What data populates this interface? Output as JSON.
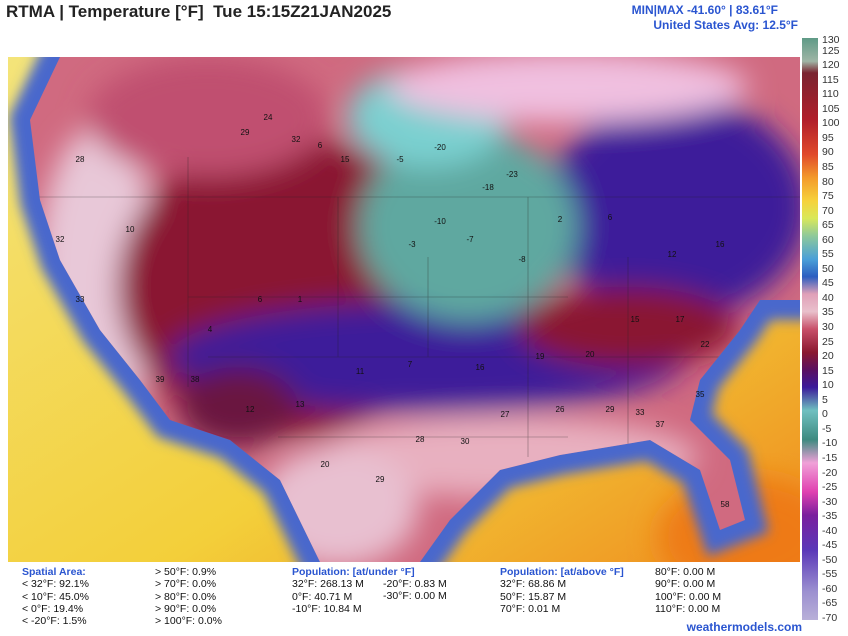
{
  "header": {
    "title": "RTMA | Temperature [°F]  Tue 15:15Z21JAN2025",
    "minmax": "MIN|MAX -41.60° | 83.61°F",
    "average": "United States Avg: 12.5°F"
  },
  "colorbar": {
    "ticks": [
      130,
      125,
      120,
      115,
      110,
      105,
      100,
      95,
      90,
      85,
      80,
      75,
      70,
      65,
      60,
      55,
      50,
      45,
      40,
      35,
      30,
      25,
      20,
      15,
      10,
      5,
      0,
      -5,
      -10,
      -15,
      -20,
      -25,
      -30,
      -35,
      -40,
      -45,
      -50,
      -55,
      -60,
      -65,
      -70
    ]
  },
  "stations": [
    "29",
    "24",
    "32",
    "6",
    "15",
    "-5",
    "-20",
    "-18",
    "-23",
    "-10",
    "-7",
    "-8",
    "-3",
    "2",
    "6",
    "12",
    "16",
    "15",
    "17",
    "22",
    "20",
    "19",
    "16",
    "7",
    "11",
    "13",
    "12",
    "38",
    "39",
    "33",
    "32",
    "28",
    "10",
    "28",
    "30",
    "27",
    "26",
    "29",
    "33",
    "37",
    "35",
    "58",
    "29",
    "20",
    "4",
    "6",
    "1"
  ],
  "footer": {
    "spatial": {
      "title": "Spatial Area:",
      "below": [
        "< 32°F: 92.1%",
        "< 10°F: 45.0%",
        "< 0°F: 19.4%",
        "< -20°F: 1.5%"
      ],
      "above": [
        "> 50°F: 0.9%",
        "> 70°F: 0.0%",
        "> 80°F: 0.0%",
        "> 90°F: 0.0%",
        "> 100°F: 0.0%"
      ]
    },
    "pop_under": {
      "title": "Population: [at/under °F]",
      "col1": [
        "32°F: 268.13 M",
        "0°F: 40.71 M",
        "-10°F: 10.84 M"
      ],
      "col2": [
        "-20°F: 0.83 M",
        "-30°F: 0.00 M"
      ]
    },
    "pop_above": {
      "title": "Population: [at/above °F]",
      "col1": [
        "32°F: 68.86 M",
        "50°F: 15.87 M",
        "70°F: 0.01 M"
      ],
      "col2": [
        "80°F: 0.00 M",
        "90°F: 0.00 M",
        "100°F: 0.00 M",
        "110°F: 0.00 M"
      ]
    },
    "credit": "weathermodels.com"
  }
}
